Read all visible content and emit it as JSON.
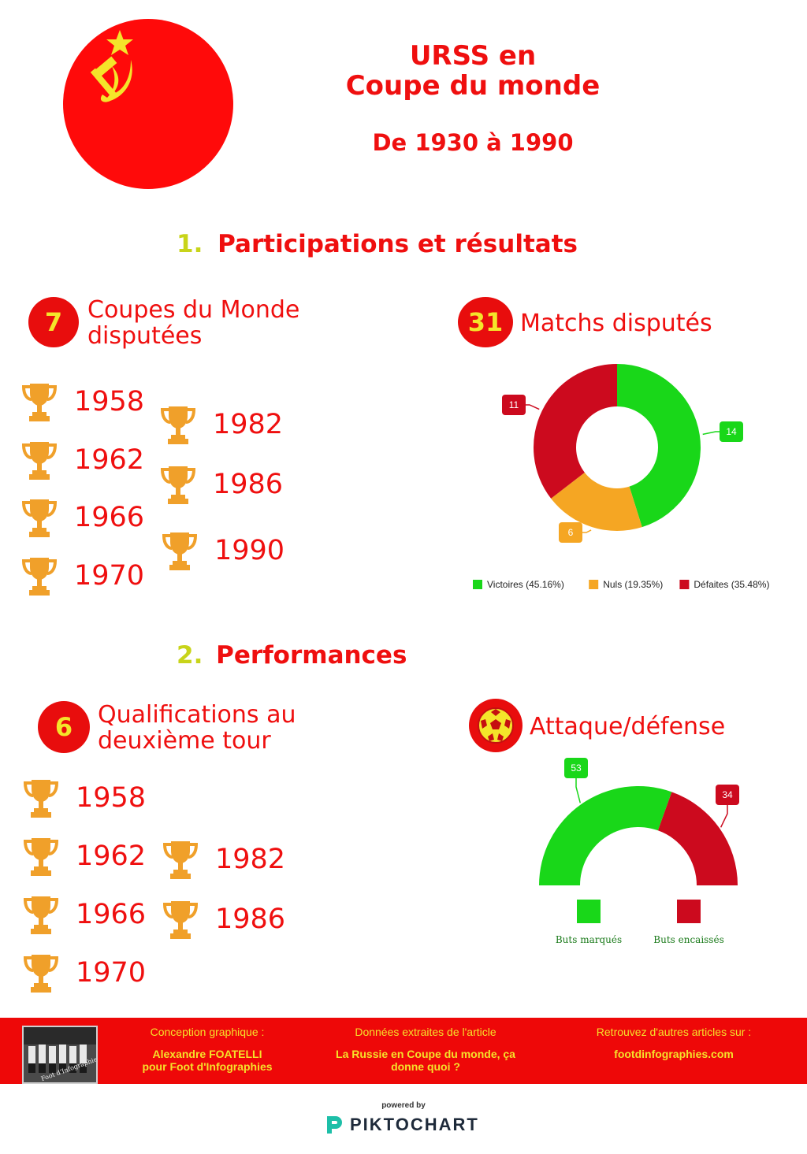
{
  "header": {
    "title_line1": "URSS en",
    "title_line2": "Coupe du monde",
    "subtitle": "De 1930 à 1990"
  },
  "colors": {
    "red": "#ef0f0f",
    "yellow": "#f4e52a",
    "lime": "#c8d41a",
    "green": "#19d719",
    "orange": "#f5a623",
    "dark_red": "#cc0a1e",
    "trophy": "#f0a02a"
  },
  "section1": {
    "number": "1.",
    "title": "Participations et résultats",
    "cups": {
      "count": "7",
      "label_line1": "Coupes du Monde",
      "label_line2": "disputées",
      "years_left": [
        "1958",
        "1962",
        "1966",
        "1970"
      ],
      "years_right": [
        "1982",
        "1986",
        "1990"
      ],
      "icon": "trophy-icon"
    },
    "matches": {
      "count": "31",
      "label": "Matchs disputés"
    }
  },
  "section2": {
    "number": "2.",
    "title": "Performances",
    "qualif": {
      "count": "6",
      "label_line1": "Qualifications au",
      "label_line2": "deuxième tour",
      "years_left": [
        "1958",
        "1962",
        "1966",
        "1970"
      ],
      "years_right": [
        "1982",
        "1986"
      ],
      "icon": "trophy-icon"
    },
    "attack": {
      "label": "Attaque/défense",
      "icon": "soccer-ball-icon"
    }
  },
  "chart_data": [
    {
      "type": "pie",
      "variant": "donut",
      "categories": [
        "Victoires (45.16%)",
        "Nuls (19.35%)",
        "Défaites (35.48%)"
      ],
      "values": [
        14,
        6,
        11
      ],
      "colors": [
        "#19d719",
        "#f5a623",
        "#cc0a1e"
      ],
      "legend": "bottom"
    },
    {
      "type": "pie",
      "variant": "semi-donut",
      "categories": [
        "Buts marqués",
        "Buts encaissés"
      ],
      "values": [
        53,
        34
      ],
      "colors": [
        "#19d719",
        "#cc0a1e"
      ],
      "legend": "bottom"
    }
  ],
  "footer": {
    "col1_heading": "Conception graphique :",
    "col1_line1": "Alexandre FOATELLI",
    "col1_line2": "pour Foot d'Infographies",
    "col2_heading": "Données extraites de l'article",
    "col2_line1": "La Russie en Coupe du monde, ça",
    "col2_line2": "donne quoi ?",
    "col3_heading": "Retrouvez d'autres articles sur :",
    "col3_line1": "footdinfographies.com",
    "photo_caption": "Foot d'Infographies"
  },
  "powered": {
    "by": "powered by",
    "brand": "PIKTOCHART"
  }
}
